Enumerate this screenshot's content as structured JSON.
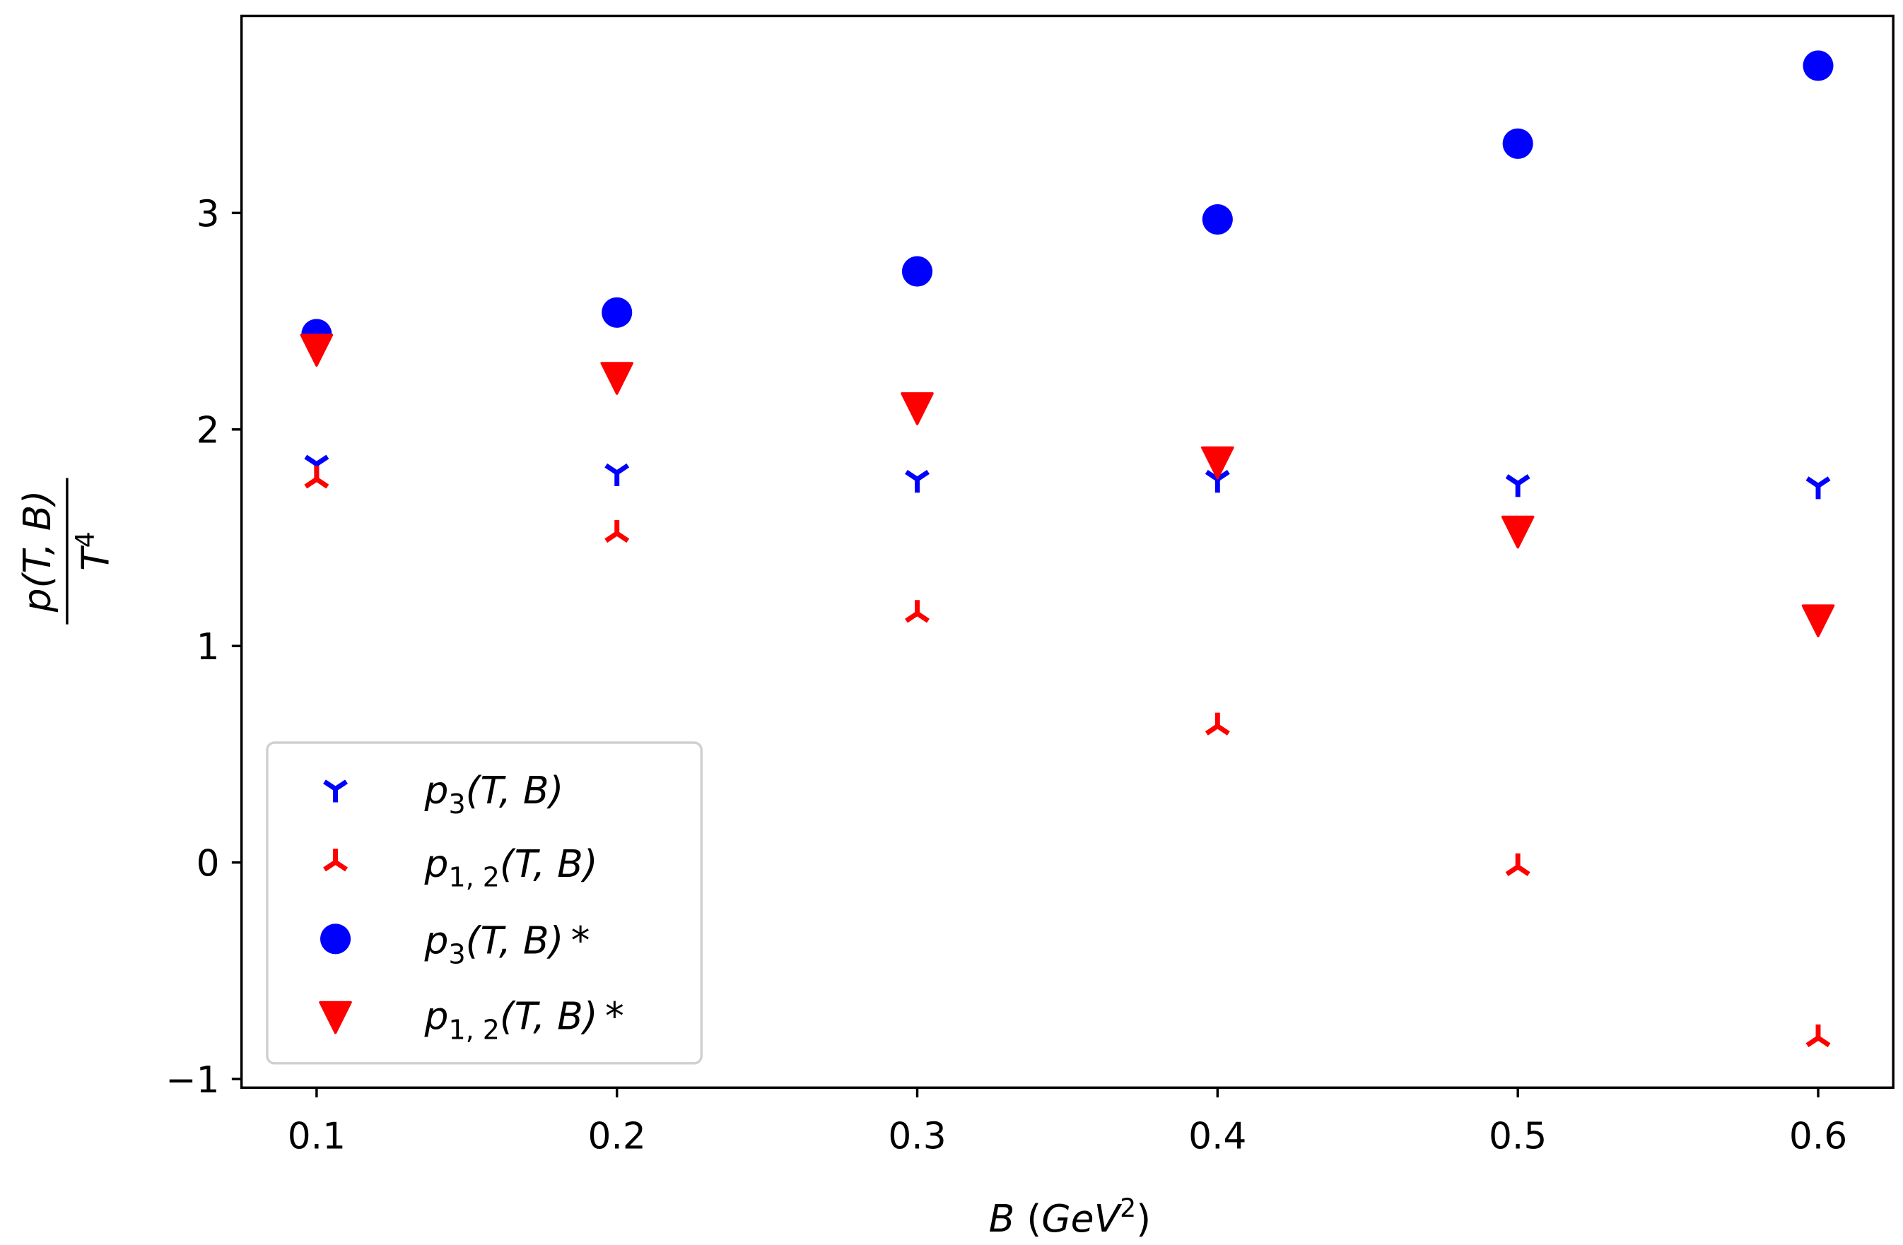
{
  "chart_data": {
    "type": "scatter",
    "xlabel": {
      "var": "B",
      "unit": "GeV",
      "exp": "2"
    },
    "ylabel": {
      "numerator": "p(T, B)",
      "denominator": "T",
      "exp": "4"
    },
    "xlim": [
      0.075,
      0.625
    ],
    "ylim": [
      -1.04,
      3.91
    ],
    "xticks": [
      "0.1",
      "0.2",
      "0.3",
      "0.4",
      "0.5",
      "0.6"
    ],
    "xtick_values": [
      0.1,
      0.2,
      0.3,
      0.4,
      0.5,
      0.6
    ],
    "yticks": [
      "−1",
      "0",
      "1",
      "2",
      "3"
    ],
    "ytick_values": [
      -1,
      0,
      1,
      2,
      3
    ],
    "grid": false,
    "legend_position": "lower-left",
    "x": [
      0.1,
      0.2,
      0.3,
      0.4,
      0.5,
      0.6
    ],
    "series": [
      {
        "name": {
          "main": "p",
          "sub": "3",
          "args": "(T, B)",
          "star": ""
        },
        "marker": "tri_down",
        "color": "#0000ff",
        "values": [
          1.84,
          1.8,
          1.77,
          1.77,
          1.75,
          1.74
        ]
      },
      {
        "name": {
          "main": "p",
          "sub": "1, 2",
          "args": "(T, B)",
          "star": ""
        },
        "marker": "tri_up",
        "color": "#ff0000",
        "values": [
          1.77,
          1.52,
          1.15,
          0.63,
          -0.02,
          -0.81
        ]
      },
      {
        "name": {
          "main": "p",
          "sub": "3",
          "args": "(T, B)",
          "star": "*"
        },
        "marker": "circle",
        "color": "#0000ff",
        "values": [
          2.44,
          2.54,
          2.73,
          2.97,
          3.32,
          3.68
        ]
      },
      {
        "name": {
          "main": "p",
          "sub": "1, 2",
          "args": "(T, B)",
          "star": "*"
        },
        "marker": "triangle_down",
        "color": "#ff0000",
        "values": [
          2.38,
          2.25,
          2.11,
          1.86,
          1.54,
          1.13
        ]
      }
    ]
  }
}
